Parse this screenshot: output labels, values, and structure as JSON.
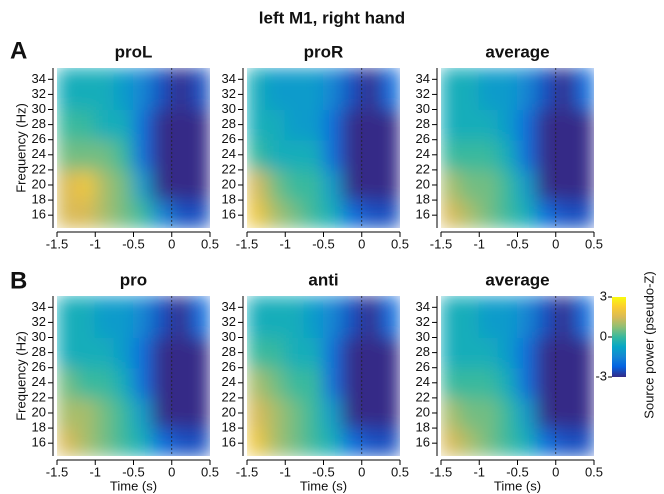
{
  "figure": {
    "title": "left M1, right hand",
    "panel_labels": [
      "A",
      "B"
    ]
  },
  "colorbar": {
    "label": "Source power (pseudo-Z)",
    "lim": [
      -3,
      3
    ],
    "ticks": [
      3,
      0,
      -3
    ]
  },
  "chart_data": [
    {
      "type": "heatmap",
      "title": "proL",
      "ylabel": "Frequency (Hz)",
      "x": [
        -1.375,
        -1.125,
        -0.875,
        -0.625,
        -0.375,
        -0.125,
        0.125,
        0.375
      ],
      "y": [
        16,
        20,
        24,
        28,
        32
      ],
      "values": [
        [
          1.5,
          1.5,
          1,
          0.5,
          0,
          -1.5,
          -2.5,
          -2.5
        ],
        [
          1.5,
          2,
          1,
          0.5,
          -1,
          -3,
          -3,
          -3
        ],
        [
          0.5,
          0.5,
          0.5,
          0,
          -2,
          -3,
          -3,
          -3
        ],
        [
          0,
          0,
          -0.5,
          -0.5,
          -2,
          -3,
          -3,
          -3
        ],
        [
          -0.5,
          -0.5,
          -0.5,
          -1,
          -1.5,
          -2.5,
          -3,
          -2.5
        ]
      ],
      "xlim": [
        -1.5,
        0.5
      ],
      "xticks": [
        -1.5,
        -1,
        -0.5,
        0,
        0.5
      ],
      "ylim": [
        14.3,
        35.5
      ],
      "yticks": [
        16,
        18,
        20,
        22,
        24,
        26,
        28,
        30,
        32,
        34
      ]
    },
    {
      "type": "heatmap",
      "title": "proR",
      "x": [
        -1.375,
        -1.125,
        -0.875,
        -0.625,
        -0.375,
        -0.125,
        0.125,
        0.375
      ],
      "y": [
        16,
        20,
        24,
        28,
        32
      ],
      "values": [
        [
          2,
          1,
          0.5,
          0,
          -0.5,
          -2,
          -2.5,
          -2.5
        ],
        [
          1.5,
          0.5,
          0,
          0,
          -1,
          -3,
          -3,
          -3
        ],
        [
          0,
          -0.5,
          -0.5,
          -0.5,
          -2,
          -3,
          -3,
          -3
        ],
        [
          -0.5,
          -0.5,
          -1,
          -1,
          -2,
          -3,
          -3,
          -3
        ],
        [
          -0.5,
          -1,
          -1,
          -1,
          -1.5,
          -2.5,
          -3,
          -2
        ]
      ],
      "xlim": [
        -1.5,
        0.5
      ],
      "xticks": [
        -1.5,
        -1,
        -0.5,
        0,
        0.5
      ],
      "ylim": [
        14.3,
        35.5
      ],
      "yticks": [
        16,
        18,
        20,
        22,
        24,
        26,
        28,
        30,
        32,
        34
      ]
    },
    {
      "type": "heatmap",
      "title": "average",
      "x": [
        -1.375,
        -1.125,
        -0.875,
        -0.625,
        -0.375,
        -0.125,
        0.125,
        0.375
      ],
      "y": [
        16,
        20,
        24,
        28,
        32
      ],
      "values": [
        [
          1.5,
          1,
          0.5,
          0,
          -0.5,
          -2,
          -2.5,
          -2.5
        ],
        [
          1,
          0.5,
          0.5,
          0,
          -1,
          -3,
          -3,
          -3
        ],
        [
          0,
          0,
          0,
          -0.5,
          -2,
          -3,
          -3,
          -3
        ],
        [
          -0.5,
          -0.5,
          -0.5,
          -1,
          -2,
          -3,
          -3,
          -3
        ],
        [
          -0.5,
          -0.5,
          -1,
          -1,
          -1.5,
          -2.5,
          -3,
          -2
        ]
      ],
      "xlim": [
        -1.5,
        0.5
      ],
      "xticks": [
        -1.5,
        -1,
        -0.5,
        0,
        0.5
      ],
      "ylim": [
        14.3,
        35.5
      ],
      "yticks": [
        16,
        18,
        20,
        22,
        24,
        26,
        28,
        30,
        32,
        34
      ]
    },
    {
      "type": "heatmap",
      "title": "pro",
      "ylabel": "Frequency (Hz)",
      "xlabel": "Time (s)",
      "x": [
        -1.375,
        -1.125,
        -0.875,
        -0.625,
        -0.375,
        -0.125,
        0.125,
        0.375
      ],
      "y": [
        16,
        20,
        24,
        28,
        32
      ],
      "values": [
        [
          1.5,
          1,
          0.5,
          0,
          -0.5,
          -2,
          -2.5,
          -2.5
        ],
        [
          1,
          1,
          0.5,
          0,
          -1,
          -3,
          -3,
          -3
        ],
        [
          0.5,
          0,
          0,
          -0.5,
          -2,
          -3,
          -3,
          -3
        ],
        [
          -0.5,
          -0.5,
          -0.5,
          -1,
          -2,
          -3,
          -3,
          -3
        ],
        [
          -0.5,
          -0.5,
          -1,
          -1,
          -1.5,
          -2.5,
          -3,
          -2
        ]
      ],
      "xlim": [
        -1.5,
        0.5
      ],
      "xticks": [
        -1.5,
        -1,
        -0.5,
        0,
        0.5
      ],
      "ylim": [
        14.3,
        35.5
      ],
      "yticks": [
        16,
        18,
        20,
        22,
        24,
        26,
        28,
        30,
        32,
        34
      ]
    },
    {
      "type": "heatmap",
      "title": "anti",
      "xlabel": "Time (s)",
      "x": [
        -1.375,
        -1.125,
        -0.875,
        -0.625,
        -0.375,
        -0.125,
        0.125,
        0.375
      ],
      "y": [
        16,
        20,
        24,
        28,
        32
      ],
      "values": [
        [
          2,
          1,
          0.5,
          0,
          -0.5,
          -2,
          -2.5,
          -2.5
        ],
        [
          1.5,
          1,
          0.5,
          0,
          -1,
          -3,
          -3,
          -3
        ],
        [
          1,
          0.5,
          0,
          0,
          -2,
          -3,
          -3,
          -3
        ],
        [
          0,
          0,
          -0.5,
          -0.5,
          -2,
          -3,
          -3,
          -3
        ],
        [
          -0.5,
          -0.5,
          -0.5,
          -1,
          -1.5,
          -2.5,
          -3,
          -2
        ]
      ],
      "xlim": [
        -1.5,
        0.5
      ],
      "xticks": [
        -1.5,
        -1,
        -0.5,
        0,
        0.5
      ],
      "ylim": [
        14.3,
        35.5
      ],
      "yticks": [
        16,
        18,
        20,
        22,
        24,
        26,
        28,
        30,
        32,
        34
      ]
    },
    {
      "type": "heatmap",
      "title": "average",
      "xlabel": "Time (s)",
      "x": [
        -1.375,
        -1.125,
        -0.875,
        -0.625,
        -0.375,
        -0.125,
        0.125,
        0.375
      ],
      "y": [
        16,
        20,
        24,
        28,
        32
      ],
      "values": [
        [
          1.5,
          1,
          0.5,
          0,
          -0.5,
          -2,
          -2.5,
          -2.5
        ],
        [
          1,
          0.5,
          0.5,
          0,
          -1,
          -3,
          -3,
          -3
        ],
        [
          0,
          0,
          0,
          -0.5,
          -2,
          -3,
          -3,
          -3
        ],
        [
          -0.5,
          -0.5,
          -0.5,
          -1,
          -2,
          -3,
          -3,
          -3
        ],
        [
          -0.5,
          -0.5,
          -1,
          -1,
          -1.5,
          -2.5,
          -3,
          -2
        ]
      ],
      "xlim": [
        -1.5,
        0.5
      ],
      "xticks": [
        -1.5,
        -1,
        -0.5,
        0,
        0.5
      ],
      "ylim": [
        14.3,
        35.5
      ],
      "yticks": [
        16,
        18,
        20,
        22,
        24,
        26,
        28,
        30,
        32,
        34
      ]
    }
  ]
}
